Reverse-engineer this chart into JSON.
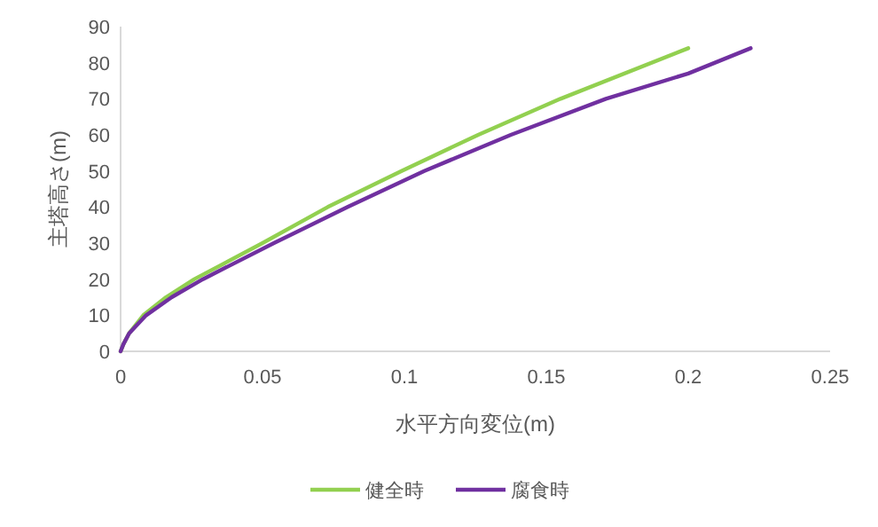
{
  "chart_data": {
    "type": "line",
    "xlabel": "水平方向変位(m)",
    "ylabel": "主塔高さ(m)",
    "xlim": [
      0,
      0.25
    ],
    "ylim": [
      0,
      90
    ],
    "xticks": [
      0,
      0.05,
      0.1,
      0.15,
      0.2,
      0.25
    ],
    "yticks": [
      0,
      10,
      20,
      30,
      40,
      50,
      60,
      70,
      80,
      90
    ],
    "grid": false,
    "legend": "bottom",
    "marker": "none",
    "line_style": "solid",
    "series": [
      {
        "name": "健全時",
        "color": "#92d050",
        "x": [
          0,
          0.001,
          0.003,
          0.008,
          0.016,
          0.026,
          0.05,
          0.073,
          0.099,
          0.126,
          0.155,
          0.2
        ],
        "values": [
          0,
          2,
          5,
          10,
          15,
          20,
          30,
          40,
          50,
          60,
          70,
          84
        ]
      },
      {
        "name": "腐食時",
        "color": "#7030a0",
        "x": [
          0,
          0.001,
          0.003,
          0.009,
          0.018,
          0.029,
          0.054,
          0.08,
          0.107,
          0.1375,
          0.171,
          0.2,
          0.222
        ],
        "values": [
          0,
          2,
          5,
          10,
          15,
          20,
          30,
          40,
          50,
          60,
          70,
          77,
          84
        ]
      }
    ]
  }
}
